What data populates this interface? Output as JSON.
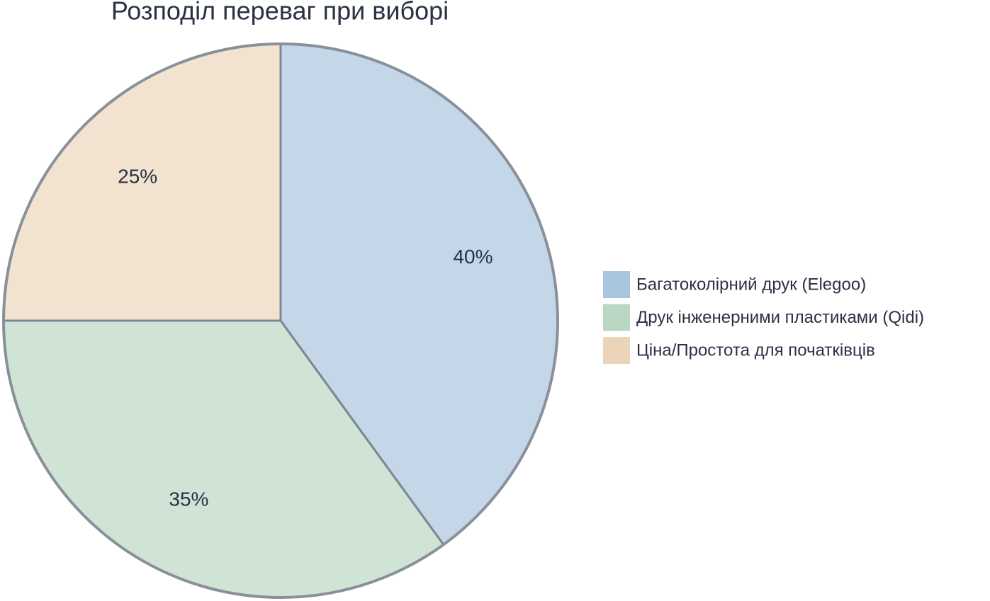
{
  "chart_data": {
    "type": "pie",
    "title": "Розподіл переваг при виборі",
    "categories": [
      "Багатоколірний друк (Elegoo)",
      "Друк інженерними пластиками (Qidi)",
      "Ціна/Простота для початківців"
    ],
    "values": [
      40,
      35,
      25
    ],
    "value_labels": [
      "40%",
      "35%",
      "25%"
    ],
    "colors": [
      "#a8c4de",
      "#b9d7c3",
      "#ebd5ba"
    ],
    "legend": "right"
  }
}
